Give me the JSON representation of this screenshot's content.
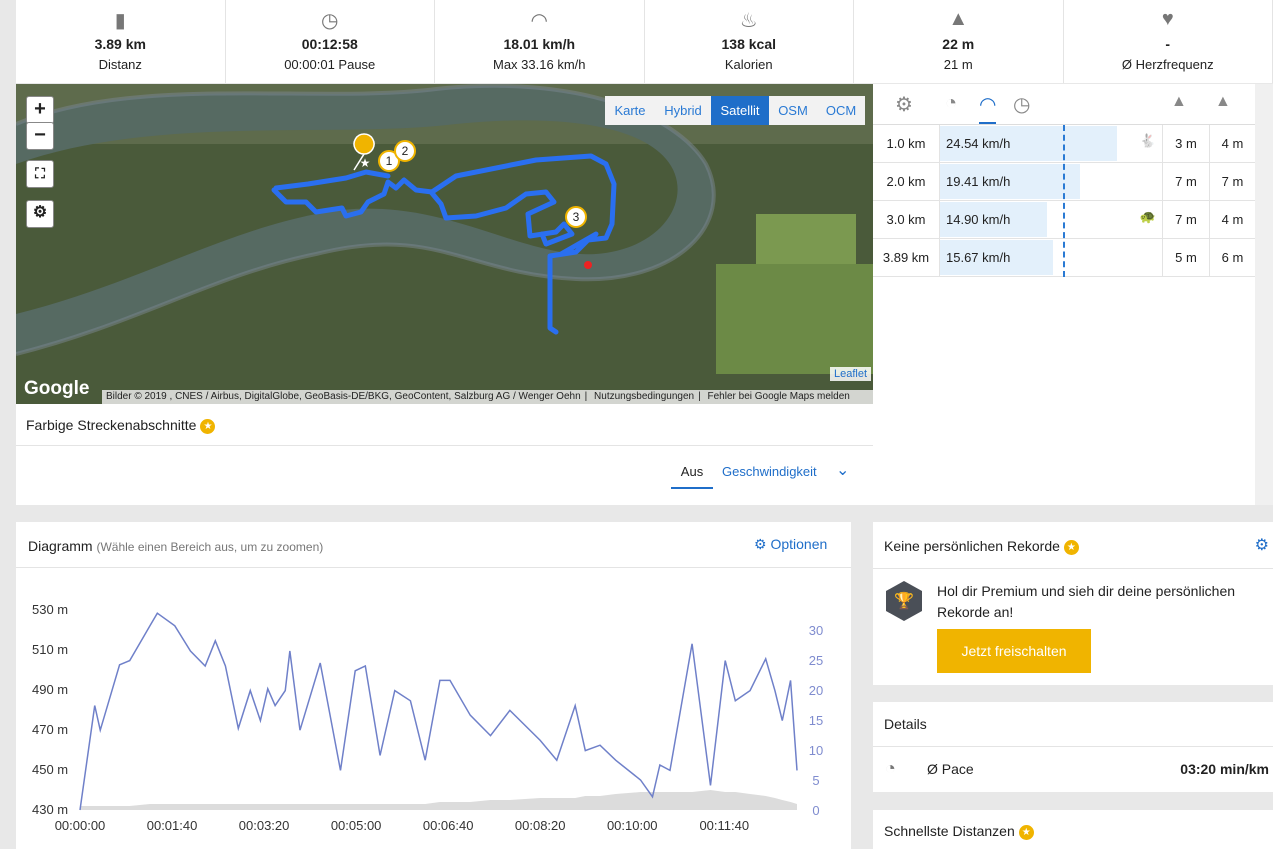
{
  "stats": [
    {
      "value": "3.89 km",
      "label": "Distanz"
    },
    {
      "value": "00:12:58",
      "label": "00:00:01 Pause"
    },
    {
      "value": "18.01 km/h",
      "label": "Max 33.16 km/h"
    },
    {
      "value": "138 kcal",
      "label": "Kalorien"
    },
    {
      "value": "22 m",
      "label": "21 m"
    },
    {
      "value": "-",
      "label": "Ø Herzfrequenz"
    }
  ],
  "map": {
    "layers": [
      "Karte",
      "Hybrid",
      "Satellit",
      "OSM",
      "OCM"
    ],
    "zoom_in": "+",
    "zoom_out": "−",
    "markers": [
      "1",
      "2",
      "3"
    ],
    "google": "Google",
    "attribution": "Bilder © 2019 , CNES / Airbus, DigitalGlobe, GeoBasis-DE/BKG, GeoContent, Salzburg AG / Wenger Oehn",
    "terms": "Nutzungsbedingungen",
    "report": "Fehler bei Google Maps melden",
    "leaflet": "Leaflet"
  },
  "segments": {
    "title": "Farbige Streckenabschnitte",
    "tabs": [
      "Aus",
      "Geschwindigkeit"
    ]
  },
  "laps": {
    "rows": [
      {
        "distance": "1.0 km",
        "speed": {
          "value": 24.54,
          "label": "24.54 km/h"
        },
        "up": "3 m",
        "down": "4 m"
      },
      {
        "distance": "2.0 km",
        "speed": {
          "value": 19.41,
          "label": "19.41 km/h"
        },
        "up": "7 m",
        "down": "7 m"
      },
      {
        "distance": "3.0 km",
        "speed": {
          "value": 14.9,
          "label": "14.90 km/h"
        },
        "up": "7 m",
        "down": "4 m"
      },
      {
        "distance": "3.89 km",
        "speed": {
          "value": 15.67,
          "label": "15.67 km/h"
        },
        "up": "5 m",
        "down": "6 m"
      }
    ]
  },
  "diagram": {
    "title": "Diagramm",
    "hint": "(Wähle einen Bereich aus, um zu zoomen)",
    "options": "Optionen"
  },
  "chart_data": {
    "type": "line",
    "xlim": [
      0,
      779
    ],
    "xticks": [
      {
        "value": 0,
        "label": "00:00:00"
      },
      {
        "value": 100,
        "label": "00:01:40"
      },
      {
        "value": 200,
        "label": "00:03:20"
      },
      {
        "value": 300,
        "label": "00:05:00"
      },
      {
        "value": 400,
        "label": "00:06:40"
      },
      {
        "value": 500,
        "label": "00:08:20"
      },
      {
        "value": 600,
        "label": "00:10:00"
      },
      {
        "value": 700,
        "label": "00:11:40"
      }
    ],
    "ylim": [
      430,
      535
    ],
    "yticks": [
      {
        "value": 430,
        "label": "430 m"
      },
      {
        "value": 450,
        "label": "450 m"
      },
      {
        "value": 470,
        "label": "470 m"
      },
      {
        "value": 490,
        "label": "490 m"
      },
      {
        "value": 510,
        "label": "510 m"
      },
      {
        "value": 530,
        "label": "530 m"
      }
    ],
    "y2lim": [
      0,
      35
    ],
    "y2ticks": [
      0,
      5,
      10,
      15,
      20,
      25,
      30
    ],
    "x": [
      0,
      16,
      22,
      43,
      54,
      76,
      84,
      103,
      120,
      136,
      147,
      158,
      172,
      185,
      196,
      204,
      212,
      223,
      228,
      239,
      261,
      283,
      299,
      310,
      326,
      342,
      359,
      375,
      391,
      402,
      424,
      446,
      467,
      500,
      518,
      538,
      549,
      565,
      582,
      609,
      622,
      630,
      641,
      665,
      685,
      701,
      712,
      728,
      745,
      755,
      763,
      772,
      779
    ],
    "series": [
      {
        "color": "#dcdcdc",
        "values": [
          432,
          432,
          432,
          432,
          432,
          433,
          433,
          433,
          433,
          433,
          433,
          433,
          433,
          433,
          433,
          433,
          433,
          433,
          433,
          433,
          433,
          433,
          433,
          433,
          433,
          433,
          433,
          433,
          434,
          434,
          434,
          435,
          435,
          436,
          436,
          436,
          437,
          437,
          438,
          439,
          439,
          439,
          439,
          439,
          440,
          439,
          439,
          438,
          437,
          436,
          435,
          434,
          433
        ]
      },
      {
        "color": "#6f80c9",
        "axis": "y2",
        "values": [
          0,
          17.4,
          13.3,
          24.2,
          24.9,
          30.7,
          32.8,
          30.7,
          26.5,
          24.0,
          28.2,
          24.0,
          13.6,
          19.9,
          14.9,
          20.2,
          17.4,
          19.9,
          26.5,
          13.3,
          24.5,
          6.6,
          23.2,
          24.0,
          9.1,
          19.9,
          18.2,
          8.3,
          21.6,
          21.6,
          15.8,
          12.4,
          16.6,
          11.6,
          8.3,
          17.4,
          9.9,
          10.8,
          8.3,
          5.0,
          2.2,
          7.5,
          6.6,
          27.7,
          4.1,
          24.9,
          18.2,
          19.9,
          25.2,
          19.9,
          14.9,
          21.6,
          6.6
        ]
      }
    ]
  },
  "records": {
    "title": "Keine persönlichen Rekorde",
    "text": "Hol dir Premium und sieh dir deine persönlichen Rekorde an!",
    "button": "Jetzt freischalten"
  },
  "details": {
    "title": "Details",
    "rows": [
      {
        "label": "Ø Pace",
        "value": "03:20 min/km"
      }
    ]
  },
  "fastest": {
    "title": "Schnellste Distanzen"
  }
}
